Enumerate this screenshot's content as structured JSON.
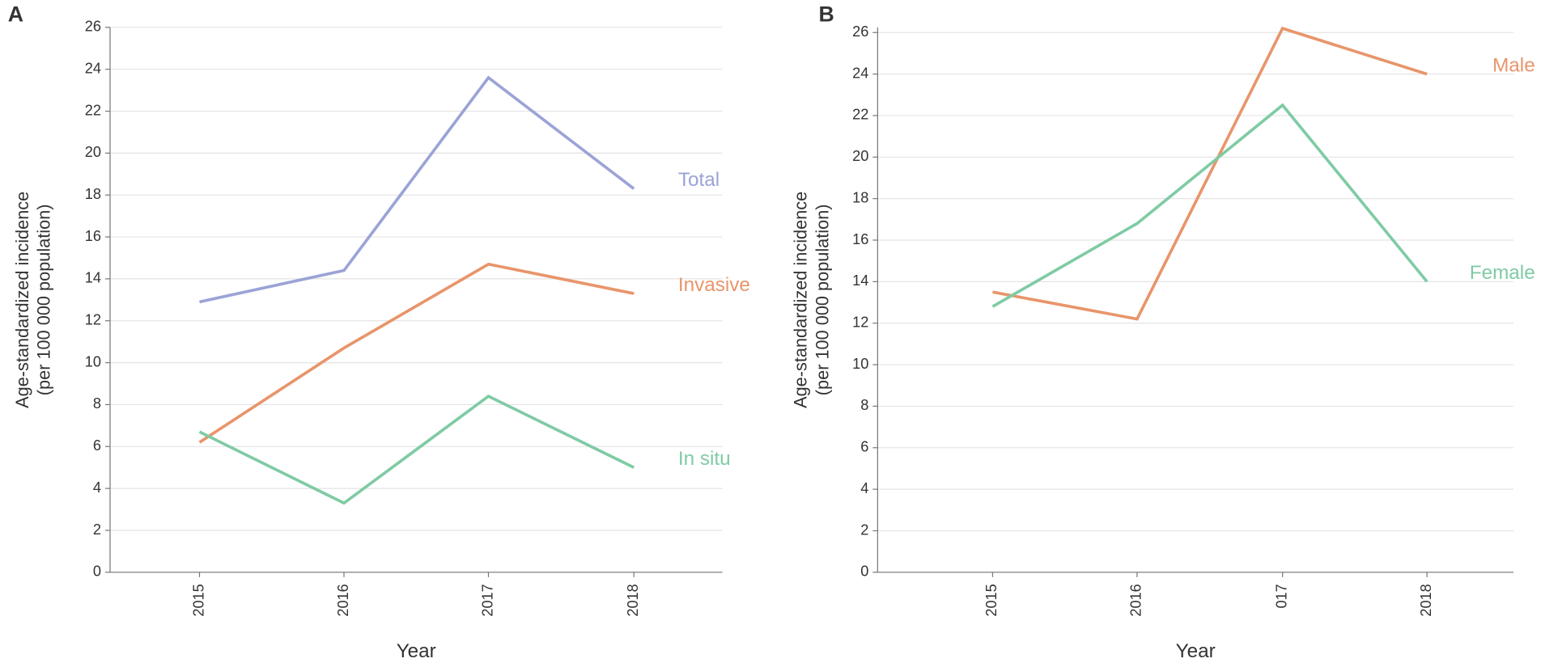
{
  "chart_data": [
    {
      "type": "line",
      "panel": "A",
      "ylabel": [
        "Age-standardized incidence",
        "(per 100 000 population)"
      ],
      "xlabel": "Year",
      "categories": [
        "2015",
        "2016",
        "2017",
        "2018"
      ],
      "ylim": [
        0,
        26
      ],
      "yticks": [
        0,
        2,
        4,
        6,
        8,
        10,
        12,
        14,
        16,
        18,
        20,
        22,
        24,
        26
      ],
      "grid": true,
      "series": [
        {
          "name": "Total",
          "color": "#9ba3d6",
          "values": [
            12.9,
            14.4,
            23.6,
            18.3
          ]
        },
        {
          "name": "Invasive",
          "color": "#e8956b",
          "values": [
            6.2,
            10.7,
            14.7,
            13.3
          ]
        },
        {
          "name": "In situ",
          "color": "#7fcba4",
          "values": [
            6.7,
            3.3,
            8.4,
            5.0
          ]
        }
      ]
    },
    {
      "type": "line",
      "panel": "B",
      "ylabel": [
        "Age-standardized incidence",
        "(per 100 000 population)"
      ],
      "xlabel": "Year",
      "categories": [
        "2015",
        "2016",
        "017",
        "2018"
      ],
      "ylim": [
        0,
        26.25
      ],
      "yticks": [
        0,
        2,
        4,
        6,
        8,
        10,
        12,
        14,
        16,
        18,
        20,
        22,
        24,
        26
      ],
      "grid": true,
      "series": [
        {
          "name": "Male",
          "color": "#e8956b",
          "values": [
            13.5,
            12.2,
            26.2,
            24.0
          ]
        },
        {
          "name": "Female",
          "color": "#7fcba4",
          "values": [
            12.8,
            16.8,
            22.5,
            14.0
          ]
        }
      ]
    }
  ]
}
